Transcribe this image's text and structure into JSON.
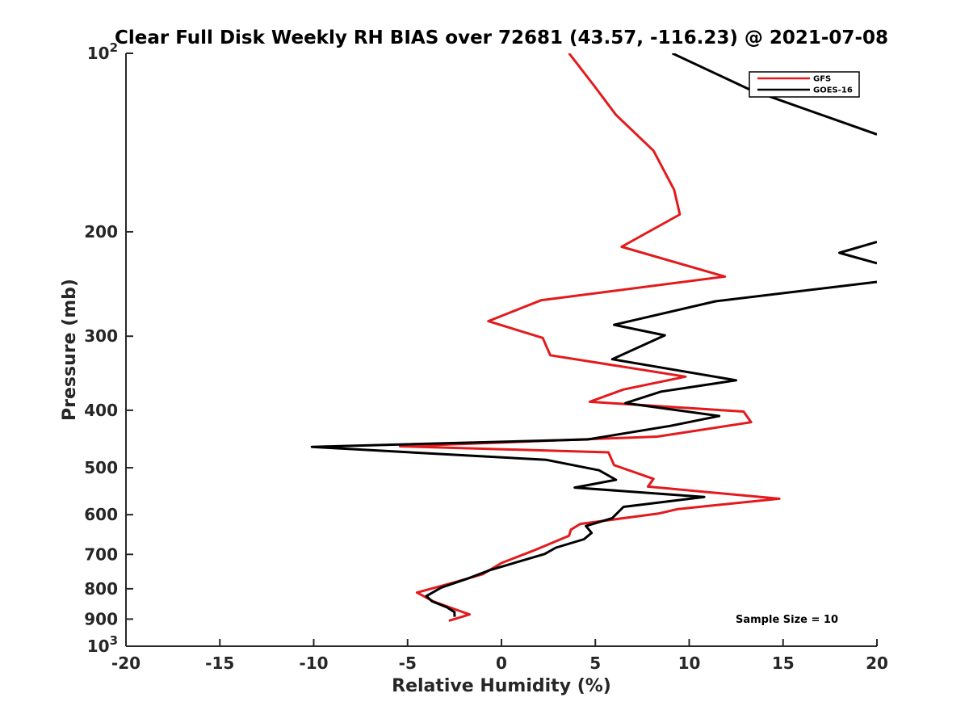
{
  "chart_data": {
    "type": "line",
    "title": "Clear Full Disk Weekly RH BIAS over 72681 (43.57, -116.23) @ 2021-07-08",
    "xlabel": "Relative Humidity (%)",
    "ylabel": "Pressure (mb)",
    "xlim": [
      -20,
      20
    ],
    "ylim": [
      100,
      1000
    ],
    "y_scale": "log",
    "y_reversed": true,
    "grid": false,
    "legend_position": "top-right",
    "x_ticks": [
      -20,
      -15,
      -10,
      -5,
      0,
      5,
      10,
      15,
      20
    ],
    "x_tick_labels": [
      "-20",
      "-15",
      "-10",
      "-5",
      "0",
      "5",
      "10",
      "15",
      "20"
    ],
    "y_ticks": [
      100,
      200,
      300,
      400,
      500,
      600,
      700,
      800,
      900,
      1000
    ],
    "y_tick_labels": [
      {
        "base": "10",
        "exp": "2"
      },
      {
        "base": "200",
        "exp": ""
      },
      {
        "base": "300",
        "exp": ""
      },
      {
        "base": "400",
        "exp": ""
      },
      {
        "base": "500",
        "exp": ""
      },
      {
        "base": "600",
        "exp": ""
      },
      {
        "base": "700",
        "exp": ""
      },
      {
        "base": "800",
        "exp": ""
      },
      {
        "base": "900",
        "exp": ""
      },
      {
        "base": "10",
        "exp": "3"
      }
    ],
    "annotation": "Sample Size = 10",
    "series": [
      {
        "name": "GFS",
        "color": "#e31a1c",
        "points": [
          [
            3.6,
            100
          ],
          [
            4.9,
            113
          ],
          [
            6.1,
            127
          ],
          [
            8.1,
            146
          ],
          [
            9.2,
            170
          ],
          [
            9.5,
            187
          ],
          [
            6.4,
            212
          ],
          [
            11.9,
            238
          ],
          [
            2.1,
            261
          ],
          [
            -0.7,
            283
          ],
          [
            2.2,
            302
          ],
          [
            2.6,
            323
          ],
          [
            9.8,
            351
          ],
          [
            6.5,
            369
          ],
          [
            4.7,
            387
          ],
          [
            12.9,
            402
          ],
          [
            13.3,
            419
          ],
          [
            8.3,
            443
          ],
          [
            -5.4,
            460
          ],
          [
            5.7,
            471
          ],
          [
            6.0,
            495
          ],
          [
            8.1,
            522
          ],
          [
            7.8,
            538
          ],
          [
            14.8,
            564
          ],
          [
            9.4,
            587
          ],
          [
            8.4,
            597
          ],
          [
            4.2,
            622
          ],
          [
            3.7,
            636
          ],
          [
            3.6,
            651
          ],
          [
            1.7,
            690
          ],
          [
            0.0,
            724
          ],
          [
            -1.0,
            756
          ],
          [
            -2.6,
            782
          ],
          [
            -4.5,
            812
          ],
          [
            -3.6,
            841
          ],
          [
            -2.4,
            868
          ],
          [
            -1.7,
            884
          ],
          [
            -2.8,
            906
          ]
        ]
      },
      {
        "name": "GOES-16",
        "color": "#000000",
        "points": [
          [
            9.1,
            100
          ],
          [
            13.2,
            115
          ],
          [
            20.0,
            137
          ],
          [
            null,
            null
          ],
          [
            20.0,
            208
          ],
          [
            18.0,
            217
          ],
          [
            20.0,
            226
          ],
          [
            null,
            null
          ],
          [
            20.0,
            243
          ],
          [
            11.4,
            262
          ],
          [
            6.0,
            287
          ],
          [
            8.7,
            299
          ],
          [
            5.9,
            328
          ],
          [
            12.5,
            356
          ],
          [
            8.5,
            372
          ],
          [
            6.6,
            389
          ],
          [
            11.6,
            409
          ],
          [
            9.0,
            425
          ],
          [
            4.6,
            448
          ],
          [
            -10.1,
            461
          ],
          [
            2.4,
            485
          ],
          [
            5.2,
            505
          ],
          [
            6.1,
            524
          ],
          [
            3.9,
            540
          ],
          [
            10.8,
            560
          ],
          [
            6.5,
            582
          ],
          [
            5.9,
            608
          ],
          [
            4.5,
            627
          ],
          [
            4.8,
            644
          ],
          [
            4.4,
            660
          ],
          [
            2.9,
            682
          ],
          [
            2.3,
            699
          ],
          [
            -0.6,
            744
          ],
          [
            -1.9,
            771
          ],
          [
            -3.2,
            796
          ],
          [
            -4.0,
            823
          ],
          [
            -3.7,
            840
          ],
          [
            -2.9,
            860
          ],
          [
            -2.5,
            876
          ],
          [
            -2.5,
            892
          ]
        ]
      }
    ]
  }
}
